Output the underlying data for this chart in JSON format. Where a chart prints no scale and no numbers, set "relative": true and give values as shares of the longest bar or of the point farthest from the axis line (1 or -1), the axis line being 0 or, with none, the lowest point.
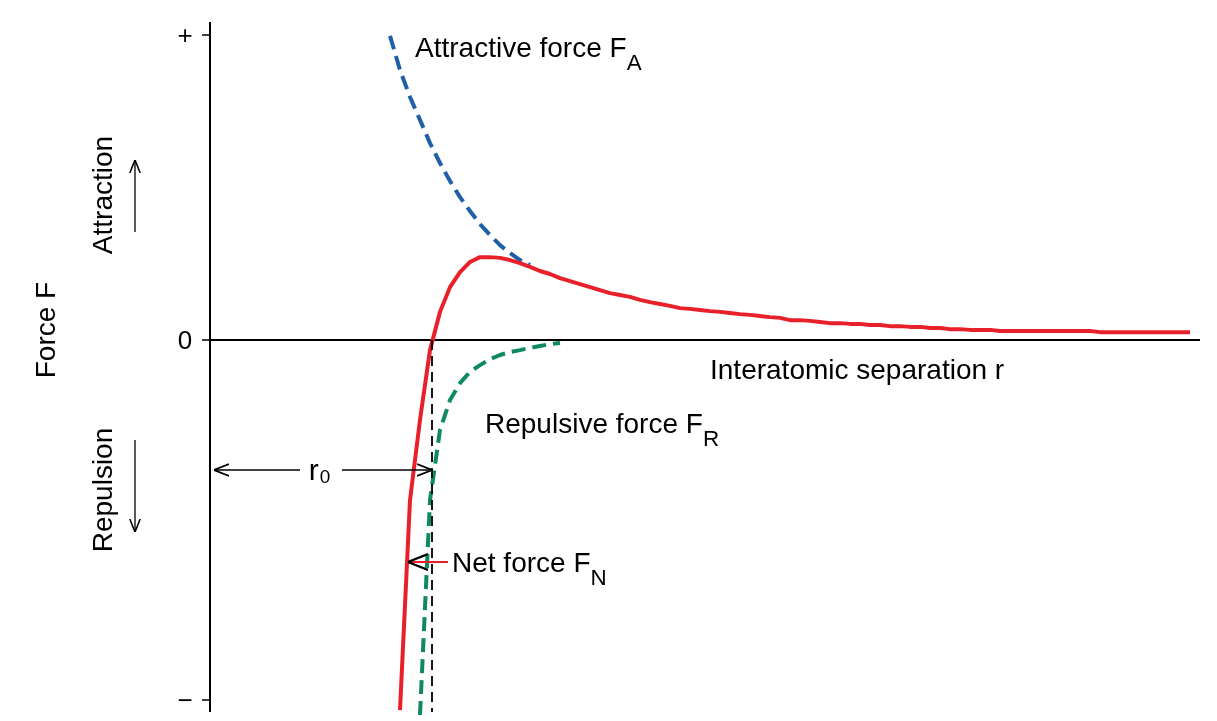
{
  "chart_data": {
    "type": "line",
    "relative": true,
    "xlabel": "Interatomic separation r",
    "categories": [
      null,
      null,
      null,
      null,
      null,
      null,
      null,
      null,
      null,
      null,
      null,
      null,
      null,
      null,
      null,
      null,
      null,
      null,
      null,
      null,
      null,
      null,
      null,
      null,
      null,
      null,
      null,
      null,
      null,
      null,
      null,
      null,
      null,
      null,
      null,
      null,
      null,
      null,
      null,
      null,
      null,
      null,
      null,
      null,
      null,
      null,
      null,
      null,
      null,
      null,
      null,
      null,
      null,
      null,
      null,
      null,
      null,
      null,
      null,
      null,
      null,
      null,
      null,
      null,
      null,
      null,
      null,
      null,
      null,
      null,
      null,
      null,
      null,
      null,
      null,
      null,
      null,
      null,
      null,
      null,
      null
    ],
    "series": [
      {
        "name": "Attractive force F$_{A}$",
        "color": "#1f5fa8",
        "line_style": "dashed",
        "values": [
          0.811,
          0.72,
          0.648,
          0.587,
          0.525,
          0.472,
          0.424,
          0.381,
          0.344,
          0.309,
          0.28,
          0.253,
          0.232,
          0.213,
          0.2,
          null,
          null,
          null,
          null,
          null,
          null,
          null,
          null,
          null,
          null,
          null,
          null,
          null,
          null,
          null,
          null,
          null,
          null,
          null,
          null,
          null,
          null,
          null,
          null,
          null,
          null,
          null,
          null,
          null,
          null,
          null,
          null,
          null,
          null,
          null,
          null,
          null,
          null,
          null,
          null,
          null,
          null,
          null,
          null,
          null,
          null,
          null,
          null,
          null,
          null,
          null,
          null,
          null,
          null,
          null,
          null,
          null,
          null,
          null,
          null,
          null,
          null,
          null,
          null,
          null,
          null
        ]
      },
      {
        "name": "Net force F$_{N}$",
        "color": "#e8202a",
        "line_style": "solid",
        "values": [
          null,
          -0.987,
          -0.427,
          -0.213,
          -0.027,
          0.075,
          0.141,
          0.181,
          0.208,
          0.221,
          0.221,
          0.219,
          0.213,
          0.205,
          0.195,
          0.184,
          0.176,
          0.165,
          0.157,
          0.149,
          0.141,
          0.133,
          0.125,
          0.12,
          0.115,
          0.107,
          0.101,
          0.096,
          0.091,
          0.085,
          0.083,
          0.08,
          0.077,
          0.075,
          0.072,
          0.069,
          0.067,
          0.064,
          0.061,
          0.059,
          0.053,
          0.053,
          0.051,
          0.048,
          0.045,
          0.045,
          0.043,
          0.043,
          0.04,
          0.04,
          0.037,
          0.037,
          0.035,
          0.035,
          0.032,
          0.032,
          0.029,
          0.029,
          0.027,
          0.027,
          0.027,
          0.024,
          0.024,
          0.024,
          0.024,
          0.024,
          0.024,
          0.024,
          0.024,
          0.024,
          0.024,
          0.021,
          0.021,
          0.021,
          0.021,
          0.021,
          0.021,
          0.021,
          0.021,
          0.021,
          0.021
        ]
      },
      {
        "name": "Repulsive force F$_{R}$",
        "color": "#0f8a5f",
        "line_style": "dashed",
        "values": [
          null,
          null,
          null,
          -1,
          -0.427,
          -0.24,
          -0.16,
          -0.115,
          -0.085,
          -0.067,
          -0.051,
          -0.04,
          -0.032,
          -0.027,
          -0.021,
          -0.016,
          -0.011,
          -0.008,
          null,
          null,
          null,
          null,
          null,
          null,
          null,
          null,
          null,
          null,
          null,
          null,
          null,
          null,
          null,
          null,
          null,
          null,
          null,
          null,
          null,
          null,
          null,
          null,
          null,
          null,
          null,
          null,
          null,
          null,
          null,
          null,
          null,
          null,
          null,
          null,
          null,
          null,
          null,
          null,
          null,
          null,
          null,
          null,
          null,
          null,
          null,
          null,
          null,
          null,
          null,
          null,
          null,
          null,
          null,
          null,
          null,
          null,
          null,
          null,
          null,
          null,
          null
        ]
      }
    ],
    "annotations": [
      "Attraction",
      "Repulsion",
      "r₀",
      "+",
      "0",
      "−",
      "Force F"
    ]
  }
}
